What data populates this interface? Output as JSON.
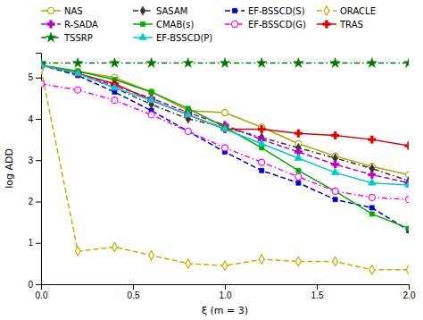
{
  "chart_data": {
    "type": "line",
    "x": [
      0,
      0.2,
      0.4,
      0.6,
      0.8,
      1.0,
      1.2,
      1.4,
      1.6,
      1.8,
      2.0
    ],
    "series": [
      {
        "name": "NAS",
        "color": "#aaaa00",
        "marker": "circle-open",
        "line_style": "solid",
        "values": [
          5.3,
          5.15,
          5.0,
          4.65,
          4.2,
          4.15,
          3.8,
          3.4,
          3.1,
          2.85,
          2.65
        ]
      },
      {
        "name": "SASAM",
        "color": "#333333",
        "marker": "diamond",
        "line_style": "dashdot",
        "values": [
          5.3,
          5.1,
          4.75,
          4.35,
          4.0,
          3.8,
          3.55,
          3.3,
          3.05,
          2.8,
          2.5
        ]
      },
      {
        "name": "EF-BSSCD(S)",
        "color": "#0000cc",
        "marker": "square",
        "line_style": "dashed",
        "values": [
          5.3,
          5.05,
          4.65,
          4.2,
          3.7,
          3.2,
          2.75,
          2.45,
          2.05,
          1.85,
          1.3
        ]
      },
      {
        "name": "ORACLE",
        "color": "#ccaa00",
        "marker": "diamond-open",
        "line_style": "dashed",
        "values": [
          5.2,
          0.8,
          0.9,
          0.7,
          0.5,
          0.45,
          0.6,
          0.55,
          0.55,
          0.35,
          0.35
        ]
      },
      {
        "name": "R-SADA",
        "color": "#bb00bb",
        "marker": "plus",
        "line_style": "dashed",
        "values": [
          5.3,
          5.1,
          4.8,
          4.5,
          4.15,
          3.85,
          3.5,
          3.2,
          2.9,
          2.65,
          2.45
        ]
      },
      {
        "name": "CMAB(s)",
        "color": "#00aa00",
        "marker": "square",
        "line_style": "solid",
        "values": [
          5.3,
          5.15,
          4.95,
          4.65,
          4.25,
          3.8,
          3.3,
          2.75,
          2.25,
          1.7,
          1.35
        ]
      },
      {
        "name": "EF-BSSCD(G)",
        "color": "#ff00ff",
        "marker": "circle-open",
        "line_style": "dashdot",
        "values": [
          4.85,
          4.7,
          4.45,
          4.1,
          3.7,
          3.3,
          2.95,
          2.6,
          2.25,
          2.1,
          2.05
        ]
      },
      {
        "name": "TRAS",
        "color": "#dd0000",
        "marker": "plus",
        "line_style": "solid",
        "values": [
          5.3,
          5.1,
          4.85,
          4.45,
          4.1,
          3.75,
          3.75,
          3.65,
          3.6,
          3.5,
          3.35
        ]
      },
      {
        "name": "TSSRP",
        "color": "#007700",
        "marker": "star",
        "line_style": "dashdot",
        "values": [
          5.35,
          5.35,
          5.35,
          5.35,
          5.35,
          5.35,
          5.35,
          5.35,
          5.35,
          5.35,
          5.35
        ]
      },
      {
        "name": "EF-BSSCD(P)",
        "color": "#00cccc",
        "marker": "triangle",
        "line_style": "solid",
        "values": [
          5.3,
          5.1,
          4.75,
          4.45,
          4.1,
          3.75,
          3.4,
          3.05,
          2.7,
          2.45,
          2.4
        ]
      }
    ],
    "xlabel": "ξ (m = 3)",
    "ylabel": "log ADD",
    "xlim": [
      0,
      2.0
    ],
    "ylim": [
      0,
      5.6
    ],
    "xticks": [
      {
        "value": 0,
        "label": "0.0"
      },
      0.5,
      {
        "value": 1.0,
        "label": "1.0"
      },
      1.5,
      {
        "value": 2.0,
        "label": "2.0"
      }
    ],
    "yticks": [
      0,
      1,
      2,
      3,
      4,
      5
    ],
    "grid": false,
    "legend": "top"
  }
}
